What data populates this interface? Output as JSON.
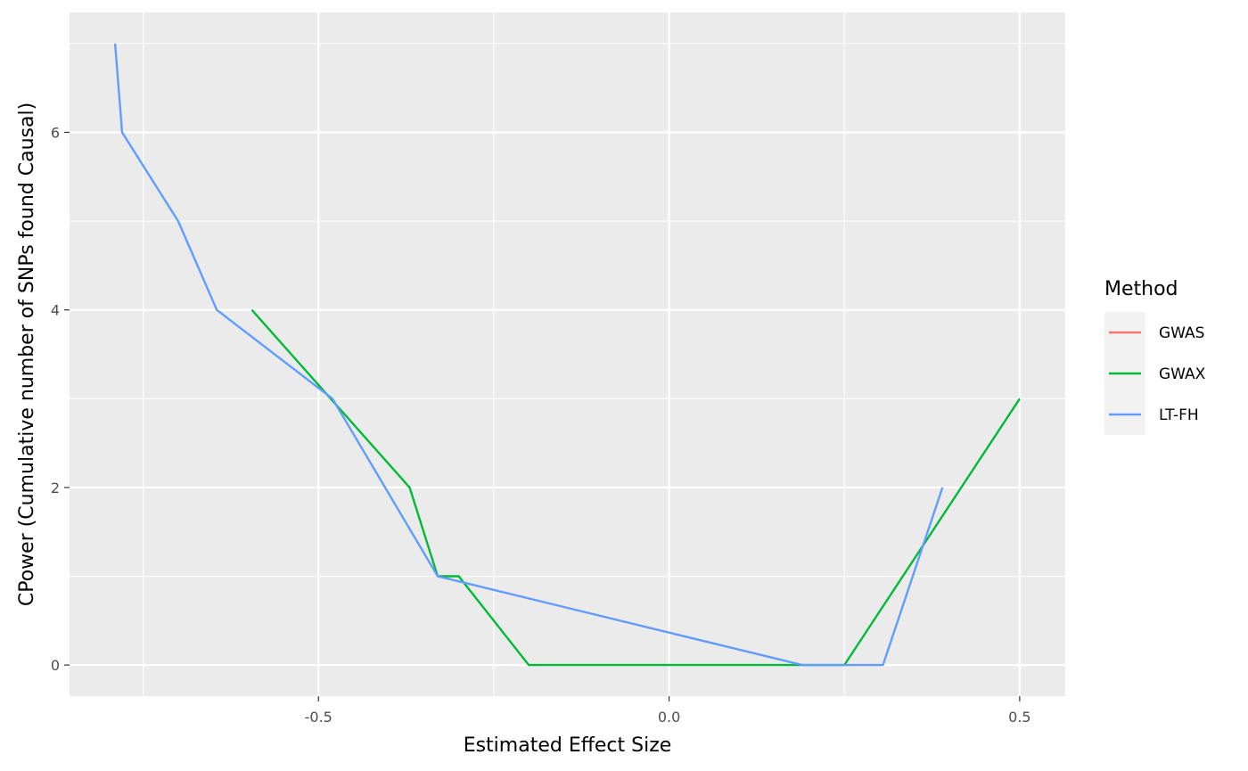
{
  "chart_data": {
    "type": "line",
    "title": "",
    "xlabel": "Estimated Effect Size",
    "ylabel": "CPower (Cumulative number of SNPs found Causal)",
    "xlim": [
      -0.855,
      0.565
    ],
    "ylim": [
      -0.35,
      7.35
    ],
    "x_ticks": [
      -0.5,
      0.0,
      0.5
    ],
    "x_tick_labels": [
      "-0.5",
      "0.0",
      "0.5"
    ],
    "y_ticks": [
      0,
      2,
      4,
      6
    ],
    "y_tick_labels": [
      "0",
      "2",
      "4",
      "6"
    ],
    "grid": true,
    "legend": {
      "title": "Method",
      "position": "right"
    },
    "series": [
      {
        "name": "GWAS",
        "color": "#F8766D",
        "x": [],
        "y": []
      },
      {
        "name": "GWAX",
        "color": "#00BA38",
        "x": [
          -0.595,
          -0.37,
          -0.33,
          -0.3,
          -0.2,
          0.25,
          0.5
        ],
        "y": [
          4,
          2,
          1,
          1,
          0,
          0,
          3
        ]
      },
      {
        "name": "LT-FH",
        "color": "#619CFF",
        "x": [
          -0.79,
          -0.78,
          -0.7,
          -0.645,
          -0.48,
          -0.33,
          0.19,
          0.305,
          0.39
        ],
        "y": [
          7,
          6,
          5,
          4,
          3,
          1,
          0,
          0,
          2
        ]
      }
    ]
  }
}
